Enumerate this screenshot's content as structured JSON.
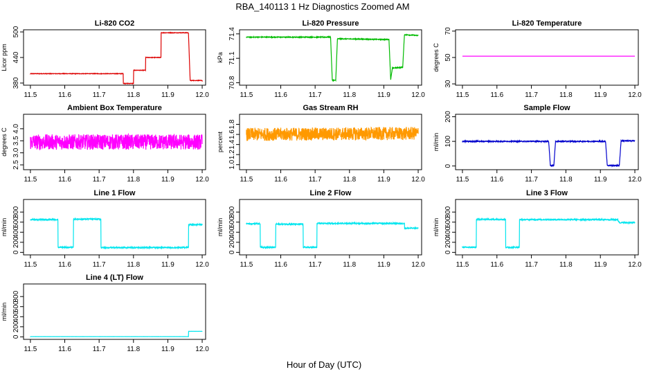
{
  "main_title": "RBA_140113  1 Hz Diagnostics Zoomed AM",
  "x_label": "Hour of Day (UTC)",
  "chart_data": [
    {
      "type": "line",
      "title": "Li-820 CO2",
      "ylabel": "Licor ppm",
      "color": "#dd0000",
      "xlim": [
        11.48,
        12.01
      ],
      "ylim": [
        375,
        505
      ],
      "yticks": [
        380,
        440,
        500
      ],
      "xticks": [
        "11.5",
        "11.6",
        "11.7",
        "11.8",
        "11.9",
        "12.0"
      ],
      "noise": 0.6,
      "series": [
        {
          "x": 11.5,
          "y": 402
        },
        {
          "x": 11.77,
          "y": 402
        },
        {
          "x": 11.77,
          "y": 379
        },
        {
          "x": 11.8,
          "y": 379
        },
        {
          "x": 11.8,
          "y": 410
        },
        {
          "x": 11.835,
          "y": 410
        },
        {
          "x": 11.835,
          "y": 440
        },
        {
          "x": 11.88,
          "y": 440
        },
        {
          "x": 11.88,
          "y": 498
        },
        {
          "x": 11.96,
          "y": 498
        },
        {
          "x": 11.965,
          "y": 386
        },
        {
          "x": 12.0,
          "y": 386
        }
      ]
    },
    {
      "type": "line",
      "title": "Li-820 Pressure",
      "ylabel": "kPa",
      "color": "#00bb00",
      "xlim": [
        11.48,
        12.01
      ],
      "ylim": [
        70.77,
        71.45
      ],
      "yticks": [
        70.8,
        71.1,
        71.4
      ],
      "xticks": [
        "11.5",
        "11.6",
        "11.7",
        "11.8",
        "11.9",
        "12.0"
      ],
      "noise": 0.005,
      "series": [
        {
          "x": 11.5,
          "y": 71.36
        },
        {
          "x": 11.745,
          "y": 71.36
        },
        {
          "x": 11.75,
          "y": 70.83
        },
        {
          "x": 11.76,
          "y": 70.83
        },
        {
          "x": 11.765,
          "y": 71.34
        },
        {
          "x": 11.915,
          "y": 71.33
        },
        {
          "x": 11.92,
          "y": 70.84
        },
        {
          "x": 11.925,
          "y": 70.98
        },
        {
          "x": 11.955,
          "y": 70.99
        },
        {
          "x": 11.96,
          "y": 71.39
        },
        {
          "x": 12.0,
          "y": 71.38
        }
      ]
    },
    {
      "type": "line",
      "title": "Li-820 Temperature",
      "ylabel": "degrees C",
      "color": "#ff00ff",
      "xlim": [
        11.48,
        12.01
      ],
      "ylim": [
        29,
        71
      ],
      "yticks": [
        30,
        50,
        70
      ],
      "xticks": [
        "11.5",
        "11.6",
        "11.7",
        "11.8",
        "11.9",
        "12.0"
      ],
      "noise": 0,
      "series": [
        {
          "x": 11.5,
          "y": 51
        },
        {
          "x": 12.0,
          "y": 51
        }
      ]
    },
    {
      "type": "line",
      "title": "Ambient Box Temperature",
      "ylabel": "degrees C",
      "color": "#ff00ff",
      "xlim": [
        11.48,
        12.01
      ],
      "ylim": [
        2.3,
        4.6
      ],
      "yticks": [
        2.5,
        3.0,
        3.5,
        4.0
      ],
      "xticks": [
        "11.5",
        "11.6",
        "11.7",
        "11.8",
        "11.9",
        "12.0"
      ],
      "noise": 0.32,
      "series": [
        {
          "x": 11.5,
          "y": 3.45
        },
        {
          "x": 12.0,
          "y": 3.45
        }
      ]
    },
    {
      "type": "line",
      "title": "Gas Stream RH",
      "ylabel": "percent",
      "color": "#ff9900",
      "xlim": [
        11.48,
        12.01
      ],
      "ylim": [
        0.9,
        2.0
      ],
      "yticks": [
        1.0,
        1.2,
        1.4,
        1.6,
        1.8
      ],
      "xticks": [
        "11.5",
        "11.6",
        "11.7",
        "11.8",
        "11.9",
        "12.0"
      ],
      "noise": 0.13,
      "series": [
        {
          "x": 11.5,
          "y": 1.6
        },
        {
          "x": 12.0,
          "y": 1.62
        }
      ]
    },
    {
      "type": "line",
      "title": "Sample Flow",
      "ylabel": "ml/min",
      "color": "#0000cc",
      "xlim": [
        11.48,
        12.01
      ],
      "ylim": [
        -15,
        210
      ],
      "yticks": [
        0,
        100,
        200
      ],
      "xticks": [
        "11.5",
        "11.6",
        "11.7",
        "11.8",
        "11.9",
        "12.0"
      ],
      "noise": 2,
      "series": [
        {
          "x": 11.5,
          "y": 100
        },
        {
          "x": 11.75,
          "y": 100
        },
        {
          "x": 11.755,
          "y": 2
        },
        {
          "x": 11.765,
          "y": 2
        },
        {
          "x": 11.77,
          "y": 100
        },
        {
          "x": 11.915,
          "y": 100
        },
        {
          "x": 11.92,
          "y": 2
        },
        {
          "x": 11.955,
          "y": 2
        },
        {
          "x": 11.96,
          "y": 102
        },
        {
          "x": 12.0,
          "y": 102
        }
      ]
    },
    {
      "type": "line",
      "title": "Line 1 Flow",
      "ylabel": "ml/min",
      "color": "#00e5ee",
      "xlim": [
        11.48,
        12.01
      ],
      "ylim": [
        -50,
        1050
      ],
      "yticks": [
        0,
        200,
        400,
        600,
        800
      ],
      "xticks": [
        "11.5",
        "11.6",
        "11.7",
        "11.8",
        "11.9",
        "12.0"
      ],
      "noise": 12,
      "series": [
        {
          "x": 11.5,
          "y": 650
        },
        {
          "x": 11.58,
          "y": 650
        },
        {
          "x": 11.58,
          "y": 100
        },
        {
          "x": 11.625,
          "y": 100
        },
        {
          "x": 11.625,
          "y": 660
        },
        {
          "x": 11.705,
          "y": 660
        },
        {
          "x": 11.705,
          "y": 95
        },
        {
          "x": 11.96,
          "y": 95
        },
        {
          "x": 11.96,
          "y": 550
        },
        {
          "x": 12.0,
          "y": 550
        }
      ]
    },
    {
      "type": "line",
      "title": "Line 2 Flow",
      "ylabel": "ml/min",
      "color": "#00e5ee",
      "xlim": [
        11.48,
        12.01
      ],
      "ylim": [
        -50,
        1050
      ],
      "yticks": [
        0,
        200,
        400,
        600,
        800
      ],
      "xticks": [
        "11.5",
        "11.6",
        "11.7",
        "11.8",
        "11.9",
        "12.0"
      ],
      "noise": 12,
      "series": [
        {
          "x": 11.5,
          "y": 570
        },
        {
          "x": 11.54,
          "y": 570
        },
        {
          "x": 11.54,
          "y": 100
        },
        {
          "x": 11.585,
          "y": 100
        },
        {
          "x": 11.585,
          "y": 560
        },
        {
          "x": 11.665,
          "y": 560
        },
        {
          "x": 11.665,
          "y": 100
        },
        {
          "x": 11.705,
          "y": 100
        },
        {
          "x": 11.705,
          "y": 575
        },
        {
          "x": 11.96,
          "y": 575
        },
        {
          "x": 11.96,
          "y": 480
        },
        {
          "x": 12.0,
          "y": 480
        }
      ]
    },
    {
      "type": "line",
      "title": "Line 3 Flow",
      "ylabel": "ml/min",
      "color": "#00e5ee",
      "xlim": [
        11.48,
        12.01
      ],
      "ylim": [
        -50,
        1050
      ],
      "yticks": [
        0,
        200,
        400,
        600,
        800
      ],
      "xticks": [
        "11.5",
        "11.6",
        "11.7",
        "11.8",
        "11.9",
        "12.0"
      ],
      "noise": 12,
      "series": [
        {
          "x": 11.5,
          "y": 100
        },
        {
          "x": 11.54,
          "y": 100
        },
        {
          "x": 11.54,
          "y": 655
        },
        {
          "x": 11.625,
          "y": 655
        },
        {
          "x": 11.625,
          "y": 100
        },
        {
          "x": 11.665,
          "y": 100
        },
        {
          "x": 11.665,
          "y": 650
        },
        {
          "x": 11.95,
          "y": 650
        },
        {
          "x": 11.955,
          "y": 590
        },
        {
          "x": 12.0,
          "y": 590
        }
      ]
    },
    {
      "type": "line",
      "title": "Line 4 (LT) Flow",
      "ylabel": "ml/min",
      "color": "#00e5ee",
      "xlim": [
        11.48,
        12.01
      ],
      "ylim": [
        -50,
        1050
      ],
      "yticks": [
        0,
        200,
        400,
        600,
        800
      ],
      "xticks": [
        "11.5",
        "11.6",
        "11.7",
        "11.8",
        "11.9",
        "12.0"
      ],
      "noise": 1,
      "series": [
        {
          "x": 11.5,
          "y": 5
        },
        {
          "x": 11.96,
          "y": 5
        },
        {
          "x": 11.96,
          "y": 110
        },
        {
          "x": 12.0,
          "y": 110
        }
      ]
    }
  ]
}
